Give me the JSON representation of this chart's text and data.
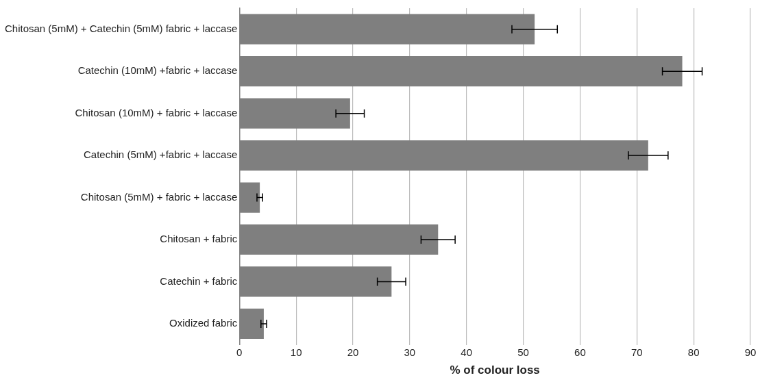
{
  "chart_data": {
    "type": "bar",
    "orientation": "horizontal",
    "categories": [
      "Chitosan (5mM) + Catechin (5mM) fabric + laccase",
      "Catechin (10mM) +fabric + laccase",
      "Chitosan (10mM) + fabric + laccase",
      "Catechin (5mM) +fabric + laccase",
      "Chitosan (5mM) + fabric + laccase",
      "Chitosan + fabric",
      "Catechin + fabric",
      "Oxidized fabric"
    ],
    "values": [
      52,
      78,
      19.5,
      72,
      3.6,
      35,
      26.8,
      4.3
    ],
    "errors": [
      4,
      3.5,
      2.5,
      3.5,
      0.5,
      3,
      2.5,
      0.5
    ],
    "color": "#7f7f7f",
    "xlabel": "% of colour loss",
    "xlim": [
      0,
      90
    ],
    "xticks": [
      0,
      10,
      20,
      30,
      40,
      50,
      60,
      70,
      80,
      90
    ],
    "grid": "x"
  }
}
